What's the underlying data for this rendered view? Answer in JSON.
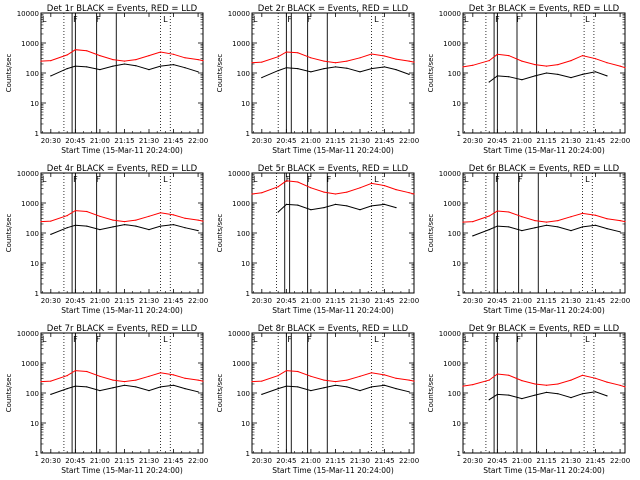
{
  "figure": {
    "background": "#ffffff",
    "event_color": "#000000",
    "lld_color": "#ff0000"
  },
  "chart_data": [
    {
      "type": "line",
      "title": "Det 1r  BLACK = Events, RED = LLD",
      "xlabel": "Start Time (15-Mar-11 20:24:00)",
      "ylabel": "Counts/sec",
      "xlim": [
        "20:24",
        "22:03"
      ],
      "ylim": [
        1,
        10000
      ],
      "yscale": "log",
      "x_tick_labels": [
        "20:30",
        "20:45",
        "21:00",
        "21:15",
        "21:30",
        "21:45",
        "22:00"
      ],
      "y_tick_labels": [
        "1",
        "10",
        "100",
        "1000",
        "10000"
      ],
      "x": [
        "20:24",
        "20:30",
        "20:40",
        "20:45",
        "20:52",
        "21:00",
        "21:08",
        "21:15",
        "21:22",
        "21:30",
        "21:37",
        "21:45",
        "21:52",
        "22:00",
        "22:03"
      ],
      "series": [
        {
          "name": "Events",
          "color": "#000000",
          "values": [
            null,
            80,
            140,
            170,
            160,
            130,
            170,
            200,
            175,
            130,
            170,
            190,
            150,
            110,
            null
          ]
        },
        {
          "name": "LLD",
          "color": "#ff0000",
          "values": [
            250,
            260,
            400,
            600,
            550,
            380,
            280,
            250,
            280,
            380,
            500,
            420,
            320,
            280,
            260
          ]
        }
      ],
      "solid_lines": [
        "20:43",
        "20:45",
        "20:58",
        "21:10"
      ],
      "dotted_lines": [
        "20:38",
        "21:37",
        "21:43"
      ],
      "markers": [
        {
          "time": "20:24",
          "label": "L"
        },
        {
          "time": "20:43",
          "label": "F"
        },
        {
          "time": "20:57",
          "label": "F"
        },
        {
          "time": "21:38",
          "label": "L"
        }
      ]
    },
    {
      "type": "line",
      "title": "Det 2r  BLACK = Events, RED = LLD",
      "xlabel": "Start Time (15-Mar-11 20:24:00)",
      "ylabel": "Counts/sec",
      "xlim": [
        "20:24",
        "22:03"
      ],
      "ylim": [
        1,
        10000
      ],
      "yscale": "log",
      "x_tick_labels": [
        "20:30",
        "20:45",
        "21:00",
        "21:15",
        "21:30",
        "21:45",
        "22:00"
      ],
      "y_tick_labels": [
        "1",
        "10",
        "100",
        "1000",
        "10000"
      ],
      "x": [
        "20:24",
        "20:30",
        "20:40",
        "20:45",
        "20:52",
        "21:00",
        "21:08",
        "21:15",
        "21:22",
        "21:30",
        "21:37",
        "21:45",
        "21:52",
        "22:00",
        "22:03"
      ],
      "series": [
        {
          "name": "Events",
          "color": "#000000",
          "values": [
            null,
            70,
            120,
            150,
            140,
            110,
            140,
            160,
            145,
            110,
            140,
            160,
            130,
            90,
            null
          ]
        },
        {
          "name": "LLD",
          "color": "#ff0000",
          "values": [
            220,
            230,
            350,
            500,
            470,
            320,
            250,
            220,
            250,
            320,
            430,
            370,
            290,
            250,
            230
          ]
        }
      ],
      "solid_lines": [
        "20:45",
        "20:48",
        "20:58",
        "21:10"
      ],
      "dotted_lines": [
        "20:40",
        "21:37",
        "21:44"
      ],
      "markers": [
        {
          "time": "20:24",
          "label": "L"
        },
        {
          "time": "20:45",
          "label": "F"
        },
        {
          "time": "20:57",
          "label": "F"
        },
        {
          "time": "21:38",
          "label": "L"
        }
      ]
    },
    {
      "type": "line",
      "title": "Det 3r  BLACK = Events, RED = LLD",
      "xlabel": "Start Time (15-Mar-11 20:24:00)",
      "ylabel": "Counts/sec",
      "xlim": [
        "20:24",
        "22:03"
      ],
      "ylim": [
        1,
        10000
      ],
      "yscale": "log",
      "x_tick_labels": [
        "20:30",
        "20:45",
        "21:00",
        "21:15",
        "21:30",
        "21:45",
        "22:00"
      ],
      "y_tick_labels": [
        "1",
        "10",
        "100",
        "1000",
        "10000"
      ],
      "x": [
        "20:24",
        "20:30",
        "20:40",
        "20:45",
        "20:52",
        "21:00",
        "21:08",
        "21:15",
        "21:22",
        "21:30",
        "21:37",
        "21:45",
        "21:52",
        "22:00",
        "22:03"
      ],
      "series": [
        {
          "name": "Events",
          "color": "#000000",
          "values": [
            null,
            null,
            50,
            80,
            75,
            60,
            80,
            100,
            90,
            70,
            90,
            110,
            80,
            null,
            null
          ]
        },
        {
          "name": "LLD",
          "color": "#ff0000",
          "values": [
            160,
            180,
            260,
            420,
            380,
            250,
            190,
            170,
            190,
            260,
            380,
            300,
            220,
            170,
            150
          ]
        }
      ],
      "solid_lines": [
        "20:43",
        "20:45",
        "20:57",
        "21:09"
      ],
      "dotted_lines": [
        "20:38",
        "21:38",
        "21:44"
      ],
      "markers": [
        {
          "time": "20:24",
          "label": "L"
        },
        {
          "time": "20:43",
          "label": "F"
        },
        {
          "time": "20:56",
          "label": "F"
        },
        {
          "time": "21:38",
          "label": "L"
        }
      ]
    },
    {
      "type": "line",
      "title": "Det 4r  BLACK = Events, RED = LLD",
      "xlabel": "Start Time (15-Mar-11 20:24:00)",
      "ylabel": "Counts/sec",
      "xlim": [
        "20:24",
        "22:03"
      ],
      "ylim": [
        1,
        10000
      ],
      "yscale": "log",
      "x_tick_labels": [
        "20:30",
        "20:45",
        "21:00",
        "21:15",
        "21:30",
        "21:45",
        "22:00"
      ],
      "y_tick_labels": [
        "1",
        "10",
        "100",
        "1000",
        "10000"
      ],
      "x": [
        "20:24",
        "20:30",
        "20:40",
        "20:45",
        "20:52",
        "21:00",
        "21:08",
        "21:15",
        "21:22",
        "21:30",
        "21:37",
        "21:45",
        "21:52",
        "22:00",
        "22:03"
      ],
      "series": [
        {
          "name": "Events",
          "color": "#000000",
          "values": [
            null,
            90,
            150,
            180,
            170,
            130,
            160,
            190,
            170,
            130,
            170,
            190,
            150,
            120,
            null
          ]
        },
        {
          "name": "LLD",
          "color": "#ff0000",
          "values": [
            240,
            250,
            380,
            560,
            520,
            360,
            270,
            240,
            270,
            360,
            470,
            400,
            310,
            270,
            250
          ]
        }
      ],
      "solid_lines": [
        "20:43",
        "20:45",
        "20:58",
        "21:10"
      ],
      "dotted_lines": [
        "20:38",
        "21:37",
        "21:43"
      ],
      "markers": [
        {
          "time": "20:24",
          "label": "L"
        },
        {
          "time": "20:43",
          "label": "F"
        },
        {
          "time": "20:57",
          "label": "F"
        },
        {
          "time": "21:38",
          "label": "L"
        }
      ]
    },
    {
      "type": "line",
      "title": "Det 5r  BLACK = Events, RED = LLD",
      "xlabel": "Start Time (15-Mar-11 20:24:00)",
      "ylabel": "Counts/sec",
      "xlim": [
        "20:24",
        "22:03"
      ],
      "ylim": [
        1,
        10000
      ],
      "yscale": "log",
      "x_tick_labels": [
        "20:30",
        "20:45",
        "21:00",
        "21:15",
        "21:30",
        "21:45",
        "22:00"
      ],
      "y_tick_labels": [
        "1",
        "10",
        "100",
        "1000",
        "10000"
      ],
      "x": [
        "20:24",
        "20:30",
        "20:40",
        "20:45",
        "20:52",
        "21:00",
        "21:08",
        "21:15",
        "21:22",
        "21:30",
        "21:37",
        "21:45",
        "21:52",
        "22:00",
        "22:03"
      ],
      "series": [
        {
          "name": "Events",
          "color": "#000000",
          "values": [
            null,
            null,
            500,
            900,
            850,
            600,
            700,
            900,
            800,
            600,
            800,
            900,
            700,
            null,
            null
          ]
        },
        {
          "name": "LLD",
          "color": "#ff0000",
          "values": [
            2000,
            2200,
            3500,
            5500,
            5000,
            3200,
            2300,
            2000,
            2300,
            3200,
            4500,
            3800,
            2800,
            2200,
            2000
          ]
        }
      ],
      "solid_lines": [
        "20:44",
        "20:47",
        "20:58",
        "21:10"
      ],
      "dotted_lines": [
        "20:39",
        "21:37",
        "21:44"
      ],
      "markers": [
        {
          "time": "20:24",
          "label": "L"
        },
        {
          "time": "20:44",
          "label": "F"
        },
        {
          "time": "20:57",
          "label": "F"
        },
        {
          "time": "21:09",
          "label": "F"
        },
        {
          "time": "21:38",
          "label": "L"
        }
      ]
    },
    {
      "type": "line",
      "title": "Det 6r  BLACK = Events, RED = LLD",
      "xlabel": "Start Time (15-Mar-11 20:24:00)",
      "ylabel": "Counts/sec",
      "xlim": [
        "20:24",
        "22:03"
      ],
      "ylim": [
        1,
        10000
      ],
      "yscale": "log",
      "x_tick_labels": [
        "20:30",
        "20:45",
        "21:00",
        "21:15",
        "21:30",
        "21:45",
        "22:00"
      ],
      "y_tick_labels": [
        "1",
        "10",
        "100",
        "1000",
        "10000"
      ],
      "x": [
        "20:24",
        "20:30",
        "20:40",
        "20:45",
        "20:52",
        "21:00",
        "21:08",
        "21:15",
        "21:22",
        "21:30",
        "21:37",
        "21:45",
        "21:52",
        "22:00",
        "22:03"
      ],
      "series": [
        {
          "name": "Events",
          "color": "#000000",
          "values": [
            null,
            80,
            130,
            170,
            160,
            120,
            150,
            180,
            160,
            120,
            160,
            180,
            140,
            110,
            null
          ]
        },
        {
          "name": "LLD",
          "color": "#ff0000",
          "values": [
            230,
            240,
            370,
            540,
            500,
            350,
            260,
            230,
            260,
            350,
            450,
            390,
            300,
            260,
            240
          ]
        }
      ],
      "solid_lines": [
        "20:43",
        "20:45",
        "20:58",
        "21:10"
      ],
      "dotted_lines": [
        "20:38",
        "21:37",
        "21:43"
      ],
      "markers": [
        {
          "time": "20:24",
          "label": "L"
        },
        {
          "time": "20:43",
          "label": "F"
        },
        {
          "time": "20:57",
          "label": "F"
        },
        {
          "time": "21:38",
          "label": "L"
        }
      ]
    },
    {
      "type": "line",
      "title": "Det 7r  BLACK = Events, RED = LLD",
      "xlabel": "Start Time (15-Mar-11 20:24:00)",
      "ylabel": "Counts/sec",
      "xlim": [
        "20:24",
        "22:03"
      ],
      "ylim": [
        1,
        10000
      ],
      "yscale": "log",
      "x_tick_labels": [
        "20:30",
        "20:45",
        "21:00",
        "21:15",
        "21:30",
        "21:45",
        "22:00"
      ],
      "y_tick_labels": [
        "1",
        "10",
        "100",
        "1000",
        "10000"
      ],
      "x": [
        "20:24",
        "20:30",
        "20:40",
        "20:45",
        "20:52",
        "21:00",
        "21:08",
        "21:15",
        "21:22",
        "21:30",
        "21:37",
        "21:45",
        "21:52",
        "22:00",
        "22:03"
      ],
      "series": [
        {
          "name": "Events",
          "color": "#000000",
          "values": [
            null,
            90,
            140,
            170,
            160,
            120,
            150,
            180,
            160,
            120,
            160,
            180,
            140,
            110,
            null
          ]
        },
        {
          "name": "LLD",
          "color": "#ff0000",
          "values": [
            240,
            250,
            380,
            560,
            520,
            360,
            270,
            240,
            270,
            360,
            470,
            400,
            310,
            270,
            250
          ]
        }
      ],
      "solid_lines": [
        "20:43",
        "20:45",
        "20:58",
        "21:10"
      ],
      "dotted_lines": [
        "20:38",
        "21:37",
        "21:43"
      ],
      "markers": [
        {
          "time": "20:24",
          "label": "L"
        },
        {
          "time": "20:43",
          "label": "F"
        },
        {
          "time": "20:57",
          "label": "F"
        },
        {
          "time": "21:38",
          "label": "L"
        }
      ]
    },
    {
      "type": "line",
      "title": "Det 8r  BLACK = Events, RED = LLD",
      "xlabel": "Start Time (15-Mar-11 20:24:00)",
      "ylabel": "Counts/sec",
      "xlim": [
        "20:24",
        "22:03"
      ],
      "ylim": [
        1,
        10000
      ],
      "yscale": "log",
      "x_tick_labels": [
        "20:30",
        "20:45",
        "21:00",
        "21:15",
        "21:30",
        "21:45",
        "22:00"
      ],
      "y_tick_labels": [
        "1",
        "10",
        "100",
        "1000",
        "10000"
      ],
      "x": [
        "20:24",
        "20:30",
        "20:40",
        "20:45",
        "20:52",
        "21:00",
        "21:08",
        "21:15",
        "21:22",
        "21:30",
        "21:37",
        "21:45",
        "21:52",
        "22:00",
        "22:03"
      ],
      "series": [
        {
          "name": "Events",
          "color": "#000000",
          "values": [
            null,
            90,
            140,
            170,
            160,
            120,
            150,
            180,
            160,
            120,
            160,
            180,
            140,
            110,
            null
          ]
        },
        {
          "name": "LLD",
          "color": "#ff0000",
          "values": [
            240,
            250,
            380,
            560,
            520,
            360,
            270,
            240,
            270,
            360,
            470,
            400,
            310,
            270,
            250
          ]
        }
      ],
      "solid_lines": [
        "20:45",
        "20:48",
        "20:58",
        "21:10"
      ],
      "dotted_lines": [
        "20:40",
        "21:37",
        "21:44"
      ],
      "markers": [
        {
          "time": "20:24",
          "label": "L"
        },
        {
          "time": "20:45",
          "label": "F"
        },
        {
          "time": "20:57",
          "label": "F"
        },
        {
          "time": "21:38",
          "label": "L"
        }
      ]
    },
    {
      "type": "line",
      "title": "Det 9r  BLACK = Events, RED = LLD",
      "xlabel": "Start Time (15-Mar-11 20:24:00)",
      "ylabel": "Counts/sec",
      "xlim": [
        "20:24",
        "22:03"
      ],
      "ylim": [
        1,
        10000
      ],
      "yscale": "log",
      "x_tick_labels": [
        "20:30",
        "20:45",
        "21:00",
        "21:15",
        "21:30",
        "21:45",
        "22:00"
      ],
      "y_tick_labels": [
        "1",
        "10",
        "100",
        "1000",
        "10000"
      ],
      "x": [
        "20:24",
        "20:30",
        "20:40",
        "20:45",
        "20:52",
        "21:00",
        "21:08",
        "21:15",
        "21:22",
        "21:30",
        "21:37",
        "21:45",
        "21:52",
        "22:00",
        "22:03"
      ],
      "series": [
        {
          "name": "Events",
          "color": "#000000",
          "values": [
            null,
            null,
            60,
            90,
            85,
            65,
            85,
            105,
            95,
            70,
            95,
            110,
            80,
            null,
            null
          ]
        },
        {
          "name": "LLD",
          "color": "#ff0000",
          "values": [
            170,
            190,
            270,
            430,
            390,
            260,
            200,
            180,
            200,
            270,
            390,
            310,
            230,
            180,
            160
          ]
        }
      ],
      "solid_lines": [
        "20:43",
        "20:45",
        "20:57",
        "21:09"
      ],
      "dotted_lines": [
        "20:38",
        "21:38",
        "21:44"
      ],
      "markers": [
        {
          "time": "20:24",
          "label": "L"
        },
        {
          "time": "20:43",
          "label": "F"
        },
        {
          "time": "20:56",
          "label": "F"
        },
        {
          "time": "21:38",
          "label": "L"
        }
      ]
    }
  ]
}
